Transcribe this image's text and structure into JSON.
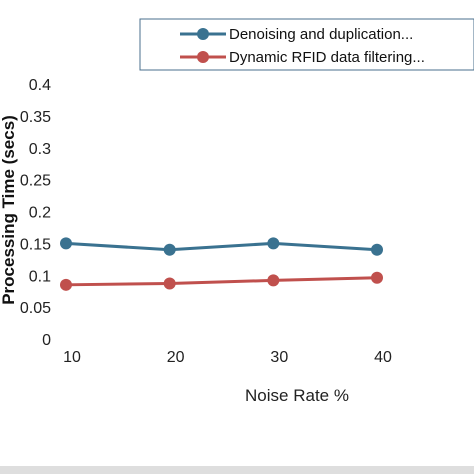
{
  "chart_data": {
    "type": "line",
    "title": "",
    "xlabel": "Noise Rate %",
    "ylabel": "Processing Time (secs)",
    "x": [
      10,
      20,
      30,
      40
    ],
    "x_tick_labels": [
      "10",
      "20",
      "30",
      "40"
    ],
    "y_tick_labels": [
      "0",
      "0.05",
      "0.1",
      "0.15",
      "0.2",
      "0.25",
      "0.3",
      "0.35",
      "0.4"
    ],
    "ylim": [
      0,
      0.4
    ],
    "grid": false,
    "legend_position": "top-right",
    "series": [
      {
        "name": "Denoising  and duplication...",
        "values": [
          0.15,
          0.14,
          0.15,
          0.14
        ],
        "color": "#3a7290"
      },
      {
        "name": "Dynamic RFID data filtering...",
        "values": [
          0.085,
          0.087,
          0.092,
          0.096
        ],
        "color": "#c0504d"
      }
    ]
  }
}
